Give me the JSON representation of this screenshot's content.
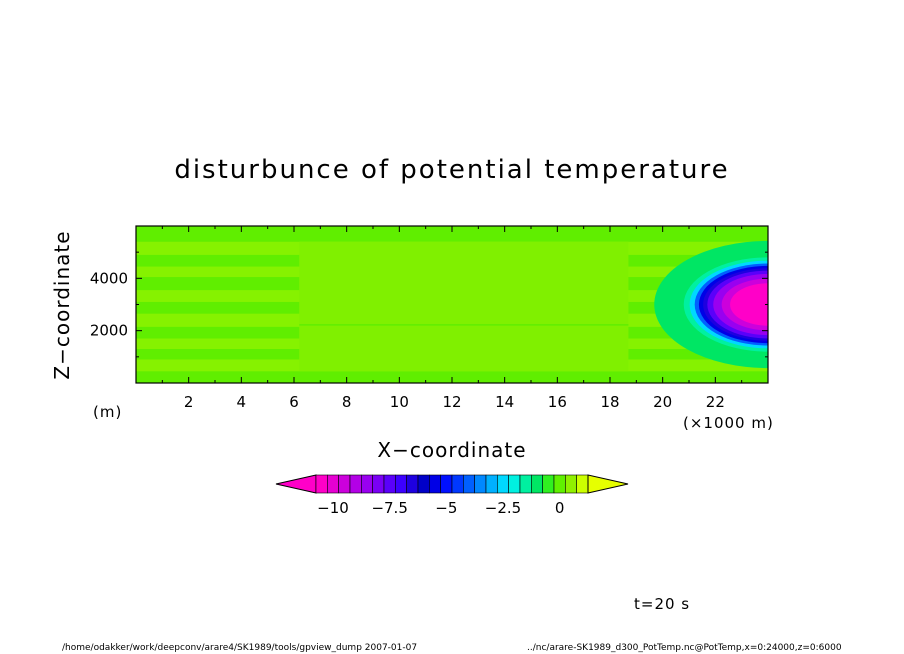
{
  "chart_data": {
    "type": "heatmap",
    "title": "disturbunce of potential temperature",
    "xlabel": "X−coordinate",
    "ylabel": "Z−coordinate",
    "x_unit": "(×1000 m)",
    "y_unit": "(m)",
    "xlim": [
      0,
      24
    ],
    "ylim": [
      0,
      6000
    ],
    "x_ticks": [
      2,
      4,
      6,
      8,
      10,
      12,
      14,
      16,
      18,
      20,
      22
    ],
    "y_ticks": [
      2000,
      4000
    ],
    "colorbar": {
      "ticks": [
        "−10",
        "−7.5",
        "−5",
        "−2.5",
        "0"
      ],
      "tick_values": [
        -10,
        -7.5,
        -5,
        -2.5,
        0
      ],
      "colors": [
        "#ff00c8",
        "#e600d2",
        "#cc00dc",
        "#b300e6",
        "#9900f0",
        "#7a00f5",
        "#5a00fa",
        "#3c00ff",
        "#1e00e0",
        "#0000c8",
        "#0000e6",
        "#0010ff",
        "#0038ff",
        "#0060ff",
        "#0088ff",
        "#00b0ff",
        "#00d8ff",
        "#00f0e0",
        "#00f0a0",
        "#00e664",
        "#30f020",
        "#60f000",
        "#90f000",
        "#ccff00"
      ],
      "over_color": "#e6ff00",
      "under_color": "#ff00c8"
    },
    "bands": [
      {
        "z": [
          0,
          450
        ],
        "level": -0.6
      },
      {
        "z": [
          450,
          900
        ],
        "level": -0.3
      },
      {
        "z": [
          900,
          1300
        ],
        "level": -0.6
      },
      {
        "z": [
          1300,
          1700
        ],
        "level": -0.3
      },
      {
        "z": [
          1700,
          2150
        ],
        "level": -0.6
      },
      {
        "z": [
          2150,
          2650
        ],
        "level": -0.3
      },
      {
        "z": [
          2650,
          3100
        ],
        "level": -0.6
      },
      {
        "z": [
          3100,
          3550
        ],
        "level": -0.3
      },
      {
        "z": [
          3550,
          4050
        ],
        "level": -0.6
      },
      {
        "z": [
          4050,
          4450
        ],
        "level": -0.3
      },
      {
        "z": [
          4450,
          4900
        ],
        "level": -0.6
      },
      {
        "z": [
          4900,
          5400
        ],
        "level": -0.3
      },
      {
        "z": [
          5400,
          6000
        ],
        "level": -0.6
      }
    ],
    "cold_pool": {
      "center_x": 24,
      "center_z": 3000,
      "min_value": -10.5,
      "radius_x": 3.2,
      "radius_z": 1800
    }
  },
  "time_label": "t=20 s",
  "footer": {
    "left": "/home/odakker/work/deepconv/arare4/SK1989/tools/gpview_dump   2007-01-07",
    "right": "../nc/arare-SK1989_d300_PotTemp.nc@PotTemp,x=0:24000,z=0:6000"
  }
}
